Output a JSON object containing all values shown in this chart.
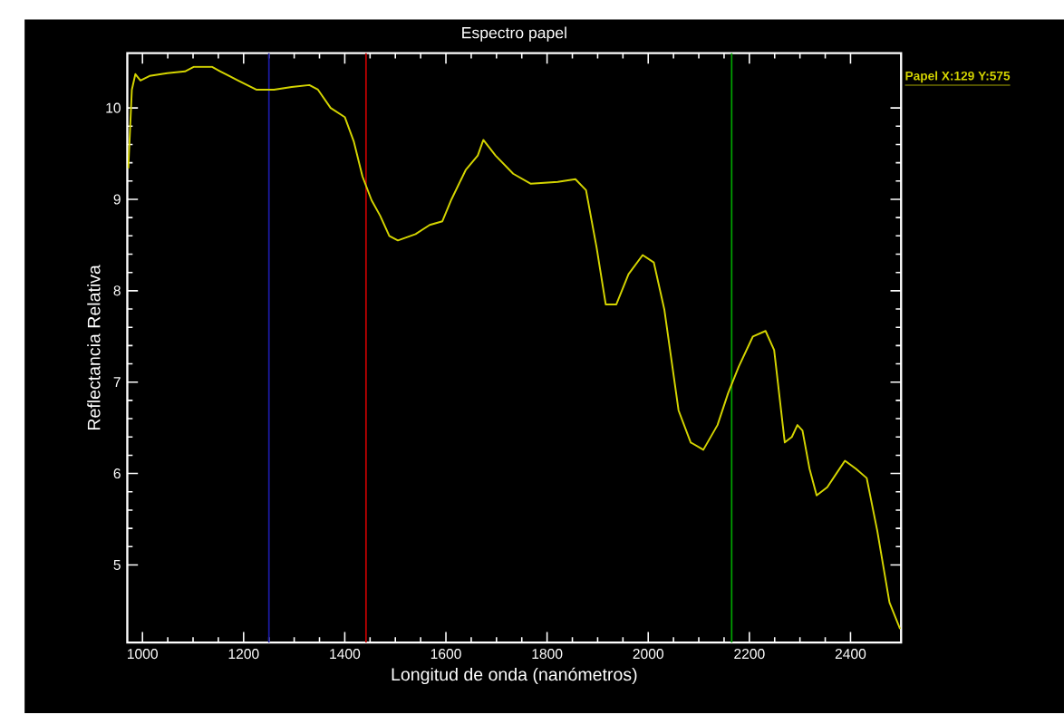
{
  "chart_data": {
    "type": "line",
    "title": "Espectro papel",
    "xlabel": "Longitud de onda (nanómetros)",
    "ylabel": "Reflectancia Relativa",
    "annotations": [
      "Papel X:129 Y:575"
    ],
    "xlim": [
      970,
      2500
    ],
    "ylim": [
      4.15,
      10.6
    ],
    "xticks": [
      1000,
      1200,
      1400,
      1600,
      1800,
      2000,
      2200,
      2400
    ],
    "yticks": [
      5,
      6,
      7,
      8,
      9,
      10
    ],
    "grid": false,
    "marker": "none",
    "line_style": "solid",
    "ref_lines": [
      {
        "axis": "x",
        "value": 1250,
        "color": "#1a1aa0"
      },
      {
        "axis": "x",
        "value": 1442,
        "color": "#c00000"
      },
      {
        "axis": "x",
        "value": 2165,
        "color": "#00a000"
      }
    ],
    "series": [
      {
        "color": "#d4d400",
        "x": [
          972,
          979,
          986,
          996,
          1014,
          1049,
          1084,
          1102,
          1137,
          1154,
          1189,
          1225,
          1260,
          1295,
          1330,
          1347,
          1372,
          1400,
          1418,
          1435,
          1453,
          1470,
          1488,
          1505,
          1540,
          1568,
          1593,
          1611,
          1639,
          1663,
          1674,
          1698,
          1733,
          1768,
          1821,
          1856,
          1877,
          1898,
          1916,
          1937,
          1961,
          1989,
          2011,
          2032,
          2060,
          2084,
          2109,
          2137,
          2158,
          2179,
          2207,
          2232,
          2249,
          2270,
          2284,
          2295,
          2305,
          2319,
          2333,
          2354,
          2372,
          2389,
          2411,
          2432,
          2453,
          2477,
          2498
        ],
        "values": [
          9.34,
          10.2,
          10.37,
          10.3,
          10.35,
          10.38,
          10.4,
          10.45,
          10.45,
          10.4,
          10.3,
          10.2,
          10.2,
          10.23,
          10.25,
          10.2,
          10.0,
          9.9,
          9.63,
          9.25,
          8.99,
          8.82,
          8.6,
          8.55,
          8.62,
          8.72,
          8.76,
          9.0,
          9.32,
          9.48,
          9.65,
          9.48,
          9.28,
          9.17,
          9.19,
          9.22,
          9.1,
          8.47,
          7.85,
          7.85,
          8.18,
          8.39,
          8.31,
          7.79,
          6.69,
          6.34,
          6.26,
          6.53,
          6.88,
          7.17,
          7.5,
          7.56,
          7.35,
          6.34,
          6.4,
          6.53,
          6.47,
          6.05,
          5.76,
          5.85,
          6.0,
          6.14,
          6.05,
          5.95,
          5.37,
          4.59,
          4.3
        ]
      }
    ]
  }
}
